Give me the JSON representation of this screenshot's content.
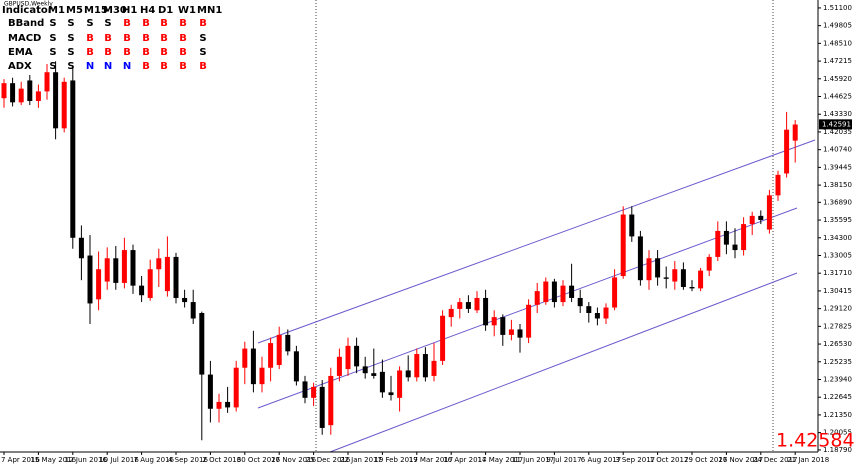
{
  "chart_data": {
    "type": "candlestick",
    "title": "GBPUSD,Weekly",
    "categories": [
      "7 Apr 2016",
      null,
      null,
      null,
      "15 May 2016",
      null,
      null,
      null,
      "12 Jun 2016",
      null,
      null,
      null,
      "10 Jul 2016",
      null,
      null,
      null,
      "7 Aug 2016",
      null,
      null,
      null,
      "4 Sep 2016",
      null,
      null,
      null,
      "2 Oct 2016",
      null,
      null,
      null,
      "30 Oct 2016",
      null,
      null,
      null,
      "27 Nov 2016",
      null,
      null,
      null,
      "25 Dec 2016",
      null,
      null,
      null,
      "22 Jan 2017",
      null,
      null,
      null,
      "19 Feb 2017",
      null,
      null,
      null,
      "19 Mar 2017",
      null,
      null,
      null,
      "16 Apr 2017",
      null,
      null,
      null,
      "14 May 2017",
      null,
      null,
      null,
      "11 Jun 2017",
      null,
      null,
      null,
      "9 Jul 2017",
      null,
      null,
      null,
      "6 Aug 2017",
      null,
      null,
      null,
      "3 Sep 2017",
      null,
      null,
      null,
      "1 Oct 2017",
      null,
      null,
      null,
      "29 Oct 2017",
      null,
      null,
      null,
      "26 Nov 2017",
      null,
      null,
      null,
      "24 Dec 2017",
      null,
      null,
      null,
      "21 Jan 2018"
    ],
    "open": [
      1.445,
      1.456,
      1.442,
      1.458,
      1.443,
      1.45,
      1.464,
      1.423,
      1.458,
      1.343,
      1.33,
      1.298,
      1.311,
      1.328,
      1.31,
      1.334,
      1.308,
      1.299,
      1.32,
      1.304,
      1.329,
      1.299,
      1.296,
      1.288,
      1.243,
      1.218,
      1.223,
      1.219,
      1.248,
      1.262,
      1.236,
      1.248,
      1.25,
      1.272,
      1.26,
      1.238,
      1.226,
      1.234,
      1.206,
      1.242,
      1.247,
      1.264,
      1.249,
      1.244,
      1.245,
      1.23,
      1.226,
      1.246,
      1.241,
      1.258,
      1.242,
      1.253,
      1.285,
      1.291,
      1.296,
      1.29,
      1.299,
      1.279,
      1.285,
      1.272,
      1.276,
      1.27,
      1.294,
      1.296,
      1.311,
      1.296,
      1.308,
      1.299,
      1.293,
      1.288,
      1.284,
      1.292,
      1.315,
      1.36,
      1.344,
      1.312,
      1.328,
      1.314,
      1.311,
      1.32,
      1.307,
      1.306,
      1.319,
      1.329,
      1.348,
      1.338,
      1.334,
      1.353,
      1.359,
      1.349,
      1.374,
      1.39,
      1.414
    ],
    "high": [
      1.459,
      1.46,
      1.457,
      1.462,
      1.455,
      1.47,
      1.472,
      1.46,
      1.468,
      1.352,
      1.345,
      1.333,
      1.336,
      1.337,
      1.343,
      1.338,
      1.315,
      1.327,
      1.335,
      1.344,
      1.332,
      1.305,
      1.305,
      1.289,
      1.253,
      1.229,
      1.234,
      1.253,
      1.267,
      1.275,
      1.256,
      1.27,
      1.278,
      1.276,
      1.264,
      1.242,
      1.237,
      1.239,
      1.248,
      1.262,
      1.27,
      1.27,
      1.256,
      1.262,
      1.254,
      1.242,
      1.249,
      1.257,
      1.262,
      1.263,
      1.266,
      1.29,
      1.294,
      1.299,
      1.301,
      1.304,
      1.305,
      1.29,
      1.287,
      1.283,
      1.28,
      1.298,
      1.31,
      1.314,
      1.313,
      1.312,
      1.324,
      1.305,
      1.296,
      1.292,
      1.295,
      1.32,
      1.366,
      1.366,
      1.348,
      1.334,
      1.334,
      1.322,
      1.326,
      1.325,
      1.312,
      1.321,
      1.331,
      1.355,
      1.355,
      1.35,
      1.358,
      1.362,
      1.363,
      1.378,
      1.392,
      1.435,
      1.429
    ],
    "low": [
      1.438,
      1.439,
      1.44,
      1.44,
      1.438,
      1.444,
      1.415,
      1.42,
      1.335,
      1.312,
      1.28,
      1.29,
      1.305,
      1.305,
      1.306,
      1.302,
      1.296,
      1.297,
      1.307,
      1.3,
      1.295,
      1.292,
      1.28,
      1.195,
      1.208,
      1.208,
      1.215,
      1.216,
      1.236,
      1.23,
      1.23,
      1.238,
      1.247,
      1.257,
      1.235,
      1.222,
      1.22,
      1.199,
      1.199,
      1.238,
      1.242,
      1.244,
      1.24,
      1.24,
      1.226,
      1.224,
      1.216,
      1.238,
      1.238,
      1.238,
      1.238,
      1.25,
      1.278,
      1.284,
      1.288,
      1.288,
      1.275,
      1.271,
      1.264,
      1.268,
      1.259,
      1.266,
      1.288,
      1.294,
      1.292,
      1.293,
      1.296,
      1.288,
      1.281,
      1.279,
      1.28,
      1.29,
      1.313,
      1.34,
      1.308,
      1.305,
      1.308,
      1.306,
      1.305,
      1.305,
      1.304,
      1.304,
      1.315,
      1.326,
      1.331,
      1.328,
      1.33,
      1.345,
      1.353,
      1.346,
      1.37,
      1.387,
      1.398
    ],
    "close": [
      1.456,
      1.442,
      1.452,
      1.443,
      1.45,
      1.464,
      1.423,
      1.457,
      1.343,
      1.328,
      1.295,
      1.32,
      1.328,
      1.31,
      1.334,
      1.308,
      1.301,
      1.32,
      1.328,
      1.329,
      1.299,
      1.296,
      1.284,
      1.243,
      1.218,
      1.223,
      1.219,
      1.248,
      1.262,
      1.236,
      1.248,
      1.266,
      1.272,
      1.26,
      1.238,
      1.226,
      1.234,
      1.204,
      1.242,
      1.256,
      1.264,
      1.249,
      1.244,
      1.242,
      1.23,
      1.228,
      1.246,
      1.241,
      1.258,
      1.241,
      1.253,
      1.286,
      1.291,
      1.296,
      1.291,
      1.299,
      1.279,
      1.285,
      1.272,
      1.276,
      1.27,
      1.294,
      1.304,
      1.311,
      1.296,
      1.308,
      1.299,
      1.293,
      1.288,
      1.284,
      1.292,
      1.314,
      1.36,
      1.344,
      1.312,
      1.328,
      1.314,
      1.313,
      1.32,
      1.307,
      1.306,
      1.319,
      1.329,
      1.348,
      1.338,
      1.334,
      1.353,
      1.359,
      1.356,
      1.374,
      1.389,
      1.422,
      1.4258
    ],
    "up_color": "#ff0000",
    "down_color": "#000000",
    "ylim": [
      1.1864,
      1.5168
    ],
    "yticks": [
      {
        "value": 1.511,
        "label": "1.51100"
      },
      {
        "value": 1.49805,
        "label": "1.49805"
      },
      {
        "value": 1.4851,
        "label": "1.48510"
      },
      {
        "value": 1.47215,
        "label": "1.47215"
      },
      {
        "value": 1.4592,
        "label": "1.45920"
      },
      {
        "value": 1.44625,
        "label": "1.44625"
      },
      {
        "value": 1.4333,
        "label": "1.43330"
      },
      {
        "value": 1.42035,
        "label": "1.42035"
      },
      {
        "value": 1.4074,
        "label": "1.40740"
      },
      {
        "value": 1.39445,
        "label": "1.39445"
      },
      {
        "value": 1.3815,
        "label": "1.38150"
      },
      {
        "value": 1.3689,
        "label": "1.36890"
      },
      {
        "value": 1.35595,
        "label": "1.35595"
      },
      {
        "value": 1.343,
        "label": "1.34300"
      },
      {
        "value": 1.33005,
        "label": "1.33005"
      },
      {
        "value": 1.3171,
        "label": "1.31710"
      },
      {
        "value": 1.30415,
        "label": "1.30415"
      },
      {
        "value": 1.2912,
        "label": "1.29120"
      },
      {
        "value": 1.27825,
        "label": "1.27825"
      },
      {
        "value": 1.2653,
        "label": "1.26530"
      },
      {
        "value": 1.25235,
        "label": "1.25235"
      },
      {
        "value": 1.2394,
        "label": "1.23940"
      },
      {
        "value": 1.22645,
        "label": "1.22645"
      },
      {
        "value": 1.2135,
        "label": "1.21350"
      },
      {
        "value": 1.20055,
        "label": "1.20055"
      },
      {
        "value": 1.1879,
        "label": "1.18790"
      }
    ],
    "current_price": {
      "value": 1.42591,
      "label": "1.42591"
    },
    "price_display": {
      "value": 1.42584,
      "label": "1.42584"
    }
  },
  "indicator_table": {
    "header": [
      "Indicator",
      "M1",
      "M5",
      "M15",
      "M30",
      "H1",
      "H4",
      "D1",
      "W1",
      "MN1"
    ],
    "rows": [
      {
        "name": "BBand",
        "signals": [
          "S",
          "S",
          "S",
          "S",
          "B",
          "B",
          "B",
          "B",
          "B"
        ]
      },
      {
        "name": "MACD",
        "signals": [
          "S",
          "S",
          "B",
          "B",
          "B",
          "B",
          "B",
          "B",
          "S"
        ]
      },
      {
        "name": "EMA",
        "signals": [
          "S",
          "S",
          "B",
          "B",
          "B",
          "B",
          "B",
          "B",
          "S"
        ]
      },
      {
        "name": "ADX",
        "signals": [
          "S",
          "S",
          "N",
          "N",
          "N",
          "B",
          "B",
          "B",
          "B"
        ]
      }
    ],
    "signal_colors": {
      "S": "#000000",
      "B": "#ff0000",
      "N": "#0000ff"
    }
  }
}
